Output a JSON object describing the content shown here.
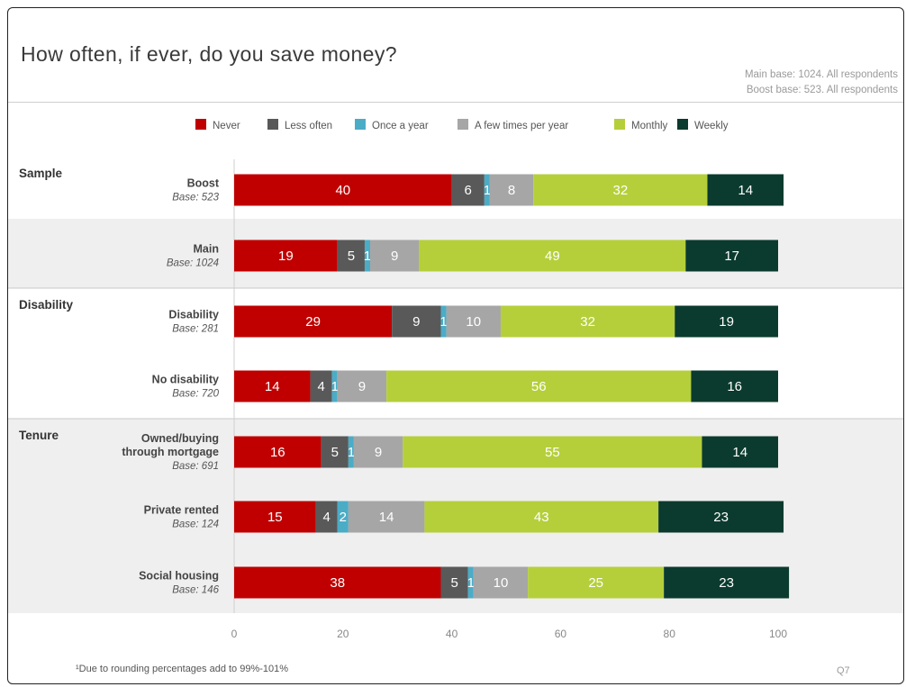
{
  "title": "How often, if ever, do you save money?",
  "base_notes": [
    "Main base: 1024. All respondents",
    "Boost base: 523. All respondents"
  ],
  "footnote": "¹Due to rounding percentages add to 99%-101%",
  "question_ref": "Q7",
  "chart_data": {
    "type": "bar",
    "orientation": "horizontal",
    "stacked": true,
    "legend_position": "top",
    "xlim": [
      0,
      100
    ],
    "x_ticks": [
      "0",
      "20",
      "40",
      "60",
      "80",
      "100"
    ],
    "x_unit": "%",
    "series": [
      {
        "name": "Never",
        "color": "#c00000",
        "values": [
          40,
          19,
          29,
          14,
          16,
          15,
          38
        ]
      },
      {
        "name": "Less often",
        "color": "#595959",
        "values": [
          6,
          5,
          9,
          4,
          5,
          4,
          5
        ]
      },
      {
        "name": "Once a year",
        "color": "#4bacc6",
        "values": [
          1,
          1,
          1,
          1,
          1,
          2,
          1
        ]
      },
      {
        "name": "A few times per year",
        "color": "#a6a6a6",
        "values": [
          8,
          9,
          10,
          9,
          9,
          14,
          10
        ]
      },
      {
        "name": "Monthly",
        "color": "#b5cf3a",
        "values": [
          32,
          49,
          32,
          56,
          55,
          43,
          25
        ]
      },
      {
        "name": "Weekly",
        "color": "#0b3b2e",
        "values": [
          14,
          17,
          19,
          16,
          14,
          23,
          23
        ]
      }
    ],
    "groups": [
      {
        "name": "Sample",
        "shaded": false,
        "rows": [
          0
        ]
      },
      {
        "name": "",
        "shaded": true,
        "rows": [
          1
        ]
      },
      {
        "name": "Disability",
        "shaded": false,
        "rows": [
          2,
          3
        ]
      },
      {
        "name": "Tenure",
        "shaded": true,
        "rows": [
          4,
          5,
          6
        ]
      }
    ],
    "rows": [
      {
        "label_lines": [
          "Boost"
        ],
        "base": "Base: 523"
      },
      {
        "label_lines": [
          "Main"
        ],
        "base": "Base: 1024"
      },
      {
        "label_lines": [
          "Disability"
        ],
        "base": "Base: 281"
      },
      {
        "label_lines": [
          "No disability"
        ],
        "base": "Base: 720"
      },
      {
        "label_lines": [
          "Owned/buying",
          "through mortgage"
        ],
        "base": "Base: 691"
      },
      {
        "label_lines": [
          "Private rented"
        ],
        "base": "Base: 124"
      },
      {
        "label_lines": [
          "Social housing"
        ],
        "base": "Base: 146"
      }
    ]
  }
}
